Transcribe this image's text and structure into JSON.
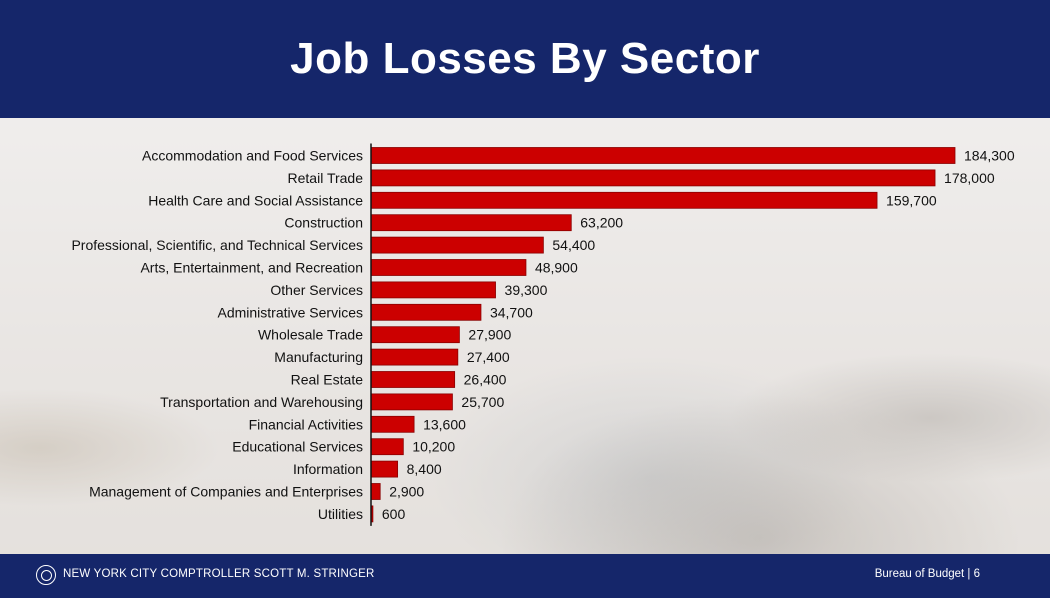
{
  "header": {
    "title": "Job Losses By Sector"
  },
  "footer": {
    "left_text": "NEW YORK CITY COMPTROLLER SCOTT M. STRINGER",
    "right_text": "Bureau of Budget | 6"
  },
  "colors": {
    "header_bg": "#15266a",
    "bar_fill": "#cc0000",
    "bar_outline": "#8a0000"
  },
  "icons": {
    "seal": "nyc-comptroller-seal-icon"
  },
  "chart_data": {
    "type": "bar",
    "orientation": "horizontal",
    "title": "",
    "xlabel": "",
    "ylabel": "",
    "categories": [
      "Accommodation and Food Services",
      "Retail Trade",
      "Health Care and Social Assistance",
      "Construction",
      "Professional, Scientific, and Technical Services",
      "Arts, Entertainment, and Recreation",
      "Other Services",
      "Administrative Services",
      "Wholesale Trade",
      "Manufacturing",
      "Real Estate",
      "Transportation and Warehousing",
      "Financial Activities",
      "Educational Services",
      "Information",
      "Management of Companies and Enterprises",
      "Utilities"
    ],
    "values": [
      184300,
      178000,
      159700,
      63200,
      54400,
      48900,
      39300,
      34700,
      27900,
      27400,
      26400,
      25700,
      13600,
      10200,
      8400,
      2900,
      600
    ],
    "value_labels": [
      "184,300",
      "178,000",
      "159,700",
      "63,200",
      "54,400",
      "48,900",
      "39,300",
      "34,700",
      "27,900",
      "27,400",
      "26,400",
      "25,700",
      "13,600",
      "10,200",
      "8,400",
      "2,900",
      "600"
    ],
    "xlim": [
      0,
      184300
    ],
    "grid": false,
    "legend": "none"
  }
}
